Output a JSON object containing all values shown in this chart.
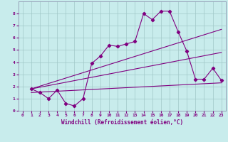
{
  "xlabel": "Windchill (Refroidissement éolien,°C)",
  "background_color": "#c8ecec",
  "line_color": "#800080",
  "grid_color": "#a0c8c8",
  "spine_color": "#8080a0",
  "tick_label_color": "#800080",
  "xlabel_color": "#800080",
  "xlim": [
    -0.5,
    23.5
  ],
  "ylim": [
    0,
    9
  ],
  "xticks": [
    0,
    1,
    2,
    3,
    4,
    5,
    6,
    7,
    8,
    9,
    10,
    11,
    12,
    13,
    14,
    15,
    16,
    17,
    18,
    19,
    20,
    21,
    22,
    23
  ],
  "yticks": [
    0,
    1,
    2,
    3,
    4,
    5,
    6,
    7,
    8
  ],
  "series0": {
    "x": [
      1,
      2,
      3,
      4,
      5,
      6,
      7,
      8,
      9,
      10,
      11,
      12,
      13,
      14,
      15,
      16,
      17,
      18,
      19,
      20,
      21,
      22,
      23
    ],
    "y": [
      1.8,
      1.5,
      1.0,
      1.7,
      0.6,
      0.4,
      1.0,
      3.9,
      4.5,
      5.4,
      5.3,
      5.5,
      5.7,
      8.0,
      7.5,
      8.2,
      8.2,
      6.5,
      4.9,
      2.6,
      2.6,
      3.5,
      2.5
    ]
  },
  "trend_lines": [
    {
      "x": [
        1,
        23
      ],
      "y": [
        1.8,
        6.7
      ]
    },
    {
      "x": [
        1,
        23
      ],
      "y": [
        1.5,
        2.3
      ]
    },
    {
      "x": [
        1,
        23
      ],
      "y": [
        1.8,
        4.8
      ]
    }
  ]
}
